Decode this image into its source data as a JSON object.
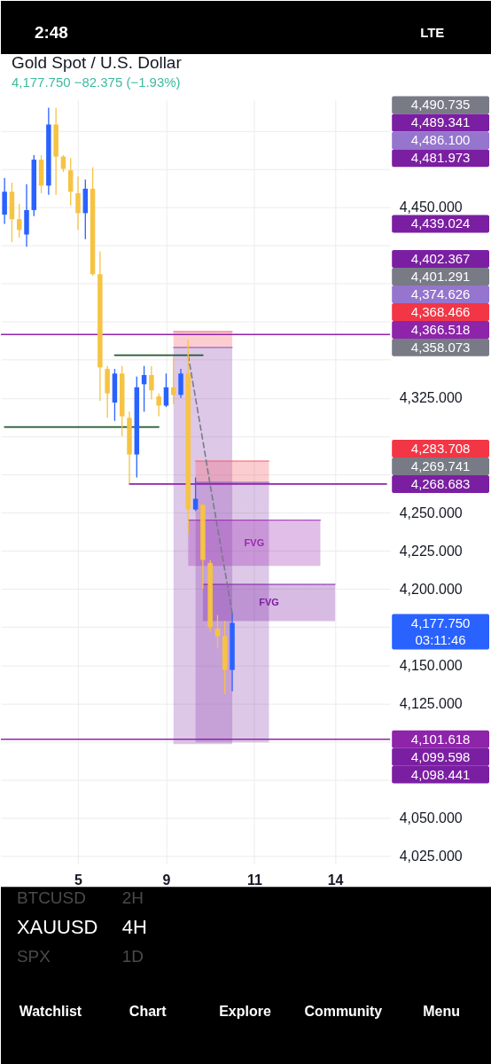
{
  "chart_data": {
    "type": "candlestick",
    "title": "Gold Spot / U.S. Dollar",
    "subtitle": "4,177.750 −82.375 (−1.93%)",
    "categories": [
      null,
      null,
      null,
      null,
      null,
      null,
      null,
      null,
      null,
      null,
      "5",
      null,
      null,
      null,
      null,
      null,
      null,
      null,
      null,
      null,
      null,
      null,
      "9",
      null,
      null,
      null,
      null,
      null,
      null,
      null,
      null,
      null,
      null,
      null,
      "11",
      null,
      null,
      null,
      null,
      null,
      null,
      null,
      null,
      null,
      null,
      "14",
      null,
      null,
      null,
      null,
      null,
      null,
      null
    ],
    "ohlc": [
      [
        4445,
        4469,
        4439,
        4460
      ],
      [
        4460,
        4466,
        4427,
        4442
      ],
      [
        4442,
        4452,
        4430,
        4435
      ],
      [
        4432,
        4465,
        4424,
        4448
      ],
      [
        4448,
        4484,
        4444,
        4481
      ],
      [
        4481,
        4484,
        4459,
        4464
      ],
      [
        4464,
        4515,
        4458,
        4504
      ],
      [
        4504,
        4515,
        4458,
        4483
      ],
      [
        4483,
        4484,
        4473,
        4475
      ],
      [
        4474,
        4482,
        4451,
        4460
      ],
      [
        4459,
        4470,
        4435,
        4446
      ],
      [
        4446,
        4468,
        4429,
        4462
      ],
      [
        4462,
        4476,
        4405,
        4406
      ],
      [
        4406,
        4421,
        4323,
        4345
      ],
      [
        4344,
        4346,
        4312,
        4328
      ],
      [
        4322,
        4344,
        4310,
        4341
      ],
      [
        4341,
        4346,
        4300,
        4313
      ],
      [
        4312,
        4316,
        4269,
        4288
      ],
      [
        4288,
        4339,
        4273,
        4332
      ],
      [
        4334,
        4346,
        4316,
        4340
      ],
      [
        4340,
        4346,
        4324,
        4330
      ],
      [
        4326,
        4328,
        4313,
        4320
      ],
      [
        4320,
        4341,
        4319,
        4332
      ],
      [
        4332,
        4352,
        4321,
        4327
      ],
      [
        4327,
        4344,
        4325,
        4341
      ],
      [
        4341,
        4363,
        4236,
        4252
      ],
      [
        4252,
        4273,
        4251,
        4259
      ],
      [
        4255,
        4256,
        4200,
        4219
      ],
      [
        4217,
        4219,
        4172,
        4175
      ],
      [
        4174,
        4183,
        4161,
        4169
      ],
      [
        4169,
        4179,
        4131,
        4147
      ],
      [
        4147,
        4184,
        4133,
        4177.75
      ],
      null,
      null,
      null,
      null,
      null,
      null,
      null,
      null,
      null,
      null,
      null,
      null,
      null,
      null,
      null,
      null,
      null,
      null,
      null,
      null,
      null
    ],
    "colors": [
      "#2962ff",
      "#f6c343",
      "#f6c343",
      "#2962ff",
      "#2962ff",
      "#f6c343",
      "#2962ff",
      "#f6c343",
      "#f6c343",
      "#f6c343",
      "#f6c343",
      "#2962ff",
      "#f6c343",
      "#f6c343",
      "#f6c343",
      "#2962ff",
      "#f6c343",
      "#f6c343",
      "#2962ff",
      "#2962ff",
      "#f6c343",
      "#f6c343",
      "#2962ff",
      "#f6c343",
      "#2962ff",
      "#f6c343",
      "#2962ff",
      "#f6c343",
      "#f6c343",
      "#f6c343",
      "#f6c343",
      "#2962ff",
      null,
      null,
      null,
      null,
      null,
      null,
      null,
      null,
      null,
      null,
      null,
      null,
      null,
      null,
      null,
      null,
      null,
      null,
      null,
      null,
      null
    ],
    "series": [
      {
        "type": "line",
        "color": "#f55862",
        "values": [
          null,
          null,
          null,
          null,
          null,
          null,
          null,
          null,
          null,
          null,
          null,
          null,
          null,
          null,
          null,
          null,
          null,
          null,
          null,
          null,
          null,
          null,
          null,
          4368.466,
          4368.466,
          4368.466,
          4368.466,
          4368.466,
          4368.466,
          4368.466,
          4368.466,
          4368.466,
          null,
          null,
          null,
          null,
          null,
          null,
          null,
          null,
          null,
          null,
          null,
          null,
          null,
          null,
          null,
          null,
          null,
          null,
          null,
          null,
          null
        ],
        "lower": [
          null,
          null,
          null,
          null,
          null,
          null,
          null,
          null,
          null,
          null,
          null,
          null,
          null,
          null,
          null,
          null,
          null,
          null,
          null,
          null,
          null,
          null,
          null,
          4358.073,
          4358.073,
          4358.073,
          4358.073,
          4358.073,
          4358.073,
          4358.073,
          4358.073,
          4358.073,
          null,
          null,
          null,
          null,
          null,
          null,
          null,
          null,
          null,
          null,
          null,
          null,
          null,
          null,
          null,
          null,
          null,
          null,
          null,
          null,
          null
        ],
        "upper": [
          null,
          null,
          null,
          null,
          null,
          null,
          null,
          null,
          null,
          null,
          null,
          null,
          null,
          null,
          null,
          null,
          null,
          null,
          null,
          null,
          null,
          null,
          null,
          4368.466,
          4368.466,
          4368.466,
          4368.466,
          4368.466,
          4368.466,
          4368.466,
          4368.466,
          4368.466,
          null,
          null,
          null,
          null,
          null,
          null,
          null,
          null,
          null,
          null,
          null,
          null,
          null,
          null,
          null,
          null,
          null,
          null,
          null,
          null,
          null
        ]
      },
      {
        "type": "line",
        "color": "#8e48b2",
        "values": [
          null,
          null,
          null,
          null,
          null,
          null,
          null,
          null,
          null,
          null,
          null,
          null,
          null,
          null,
          null,
          null,
          null,
          null,
          null,
          null,
          null,
          null,
          null,
          4358.073,
          4358.073,
          4358.073,
          4358.073,
          4358.073,
          4358.073,
          4358.073,
          4358.073,
          4358.073,
          null,
          null,
          null,
          null,
          null,
          null,
          null,
          null,
          null,
          null,
          null,
          null,
          null,
          null,
          null,
          null,
          null,
          null,
          null,
          null,
          null
        ],
        "lower": [
          null,
          null,
          null,
          null,
          null,
          null,
          null,
          null,
          null,
          null,
          null,
          null,
          null,
          null,
          null,
          null,
          null,
          null,
          null,
          null,
          null,
          null,
          null,
          4098.441,
          4098.441,
          4098.441,
          4098.441,
          4098.441,
          4098.441,
          4098.441,
          4098.441,
          4098.441,
          null,
          null,
          null,
          null,
          null,
          null,
          null,
          null,
          null,
          null,
          null,
          null,
          null,
          null,
          null,
          null,
          null,
          null,
          null,
          null,
          null
        ],
        "upper": [
          null,
          null,
          null,
          null,
          null,
          null,
          null,
          null,
          null,
          null,
          null,
          null,
          null,
          null,
          null,
          null,
          null,
          null,
          null,
          null,
          null,
          null,
          null,
          4358.073,
          4358.073,
          4358.073,
          4358.073,
          4358.073,
          4358.073,
          4358.073,
          4358.073,
          4358.073,
          null,
          null,
          null,
          null,
          null,
          null,
          null,
          null,
          null,
          null,
          null,
          null,
          null,
          null,
          null,
          null,
          null,
          null,
          null,
          null,
          null
        ]
      },
      {
        "type": "line",
        "color": "#f55862",
        "values": [
          null,
          null,
          null,
          null,
          null,
          null,
          null,
          null,
          null,
          null,
          null,
          null,
          null,
          null,
          null,
          null,
          null,
          null,
          null,
          null,
          null,
          null,
          null,
          null,
          null,
          null,
          4283.708,
          4283.708,
          4283.708,
          4283.708,
          4283.708,
          4283.708,
          4283.708,
          4283.708,
          4283.708,
          4283.708,
          4283.708,
          null,
          null,
          null,
          null,
          null,
          null,
          null,
          null,
          null,
          null,
          null,
          null,
          null,
          null,
          null,
          null
        ],
        "lower": [
          null,
          null,
          null,
          null,
          null,
          null,
          null,
          null,
          null,
          null,
          null,
          null,
          null,
          null,
          null,
          null,
          null,
          null,
          null,
          null,
          null,
          null,
          null,
          null,
          null,
          null,
          4269.741,
          4269.741,
          4269.741,
          4269.741,
          4269.741,
          4269.741,
          4269.741,
          4269.741,
          4269.741,
          4269.741,
          4269.741,
          null,
          null,
          null,
          null,
          null,
          null,
          null,
          null,
          null,
          null,
          null,
          null,
          null,
          null,
          null,
          null
        ],
        "upper": [
          null,
          null,
          null,
          null,
          null,
          null,
          null,
          null,
          null,
          null,
          null,
          null,
          null,
          null,
          null,
          null,
          null,
          null,
          null,
          null,
          null,
          null,
          null,
          null,
          null,
          null,
          4283.708,
          4283.708,
          4283.708,
          4283.708,
          4283.708,
          4283.708,
          4283.708,
          4283.708,
          4283.708,
          4283.708,
          4283.708,
          null,
          null,
          null,
          null,
          null,
          null,
          null,
          null,
          null,
          null,
          null,
          null,
          null,
          null,
          null,
          null
        ]
      },
      {
        "type": "line",
        "color": "#8e48b2",
        "values": [
          null,
          null,
          null,
          null,
          null,
          null,
          null,
          null,
          null,
          null,
          null,
          null,
          null,
          null,
          null,
          null,
          null,
          null,
          null,
          null,
          null,
          null,
          null,
          null,
          null,
          null,
          4269.741,
          4269.741,
          4269.741,
          4269.741,
          4269.741,
          4269.741,
          4269.741,
          4269.741,
          4269.741,
          4269.741,
          4269.741,
          null,
          null,
          null,
          null,
          null,
          null,
          null,
          null,
          null,
          null,
          null,
          null,
          null,
          null,
          null,
          null
        ],
        "lower": [
          null,
          null,
          null,
          null,
          null,
          null,
          null,
          null,
          null,
          null,
          null,
          null,
          null,
          null,
          null,
          null,
          null,
          null,
          null,
          null,
          null,
          null,
          null,
          null,
          null,
          null,
          4099.598,
          4099.598,
          4099.598,
          4099.598,
          4099.598,
          4099.598,
          4099.598,
          4099.598,
          4099.598,
          4099.598,
          4099.598,
          null,
          null,
          null,
          null,
          null,
          null,
          null,
          null,
          null,
          null,
          null,
          null,
          null,
          null,
          null,
          null
        ],
        "upper": [
          null,
          null,
          null,
          null,
          null,
          null,
          null,
          null,
          null,
          null,
          null,
          null,
          null,
          null,
          null,
          null,
          null,
          null,
          null,
          null,
          null,
          null,
          null,
          null,
          null,
          null,
          4269.741,
          4269.741,
          4269.741,
          4269.741,
          4269.741,
          4269.741,
          4269.741,
          4269.741,
          4269.741,
          4269.741,
          4269.741,
          null,
          null,
          null,
          null,
          null,
          null,
          null,
          null,
          null,
          null,
          null,
          null,
          null,
          null,
          null,
          null
        ]
      },
      {
        "type": "line",
        "name": "FVG",
        "color": "#9c27b0",
        "values": [
          null,
          null,
          null,
          null,
          null,
          null,
          null,
          null,
          null,
          null,
          null,
          null,
          null,
          null,
          null,
          null,
          null,
          null,
          null,
          null,
          null,
          null,
          null,
          null,
          null,
          4245,
          4245,
          4245,
          4245,
          4245,
          4245,
          4245,
          4245,
          4245,
          4245,
          4245,
          4245,
          4245,
          4245,
          4245,
          4245,
          4245,
          4245,
          4245,
          null,
          null,
          null,
          null,
          null,
          null,
          null,
          null,
          null
        ],
        "lower": [
          null,
          null,
          null,
          null,
          null,
          null,
          null,
          null,
          null,
          null,
          null,
          null,
          null,
          null,
          null,
          null,
          null,
          null,
          null,
          null,
          null,
          null,
          null,
          null,
          null,
          4215,
          4215,
          4215,
          4215,
          4215,
          4215,
          4215,
          4215,
          4215,
          4215,
          4215,
          4215,
          4215,
          4215,
          4215,
          4215,
          4215,
          4215,
          4215,
          null,
          null,
          null,
          null,
          null,
          null,
          null,
          null,
          null
        ],
        "upper": [
          null,
          null,
          null,
          null,
          null,
          null,
          null,
          null,
          null,
          null,
          null,
          null,
          null,
          null,
          null,
          null,
          null,
          null,
          null,
          null,
          null,
          null,
          null,
          null,
          null,
          4245,
          4245,
          4245,
          4245,
          4245,
          4245,
          4245,
          4245,
          4245,
          4245,
          4245,
          4245,
          4245,
          4245,
          4245,
          4245,
          4245,
          4245,
          4245,
          null,
          null,
          null,
          null,
          null,
          null,
          null,
          null,
          null
        ]
      },
      {
        "type": "line",
        "color": "#7b1fa2",
        "values": [
          null,
          null,
          null,
          null,
          null,
          null,
          null,
          null,
          null,
          null,
          null,
          null,
          null,
          null,
          null,
          null,
          null,
          null,
          null,
          null,
          null,
          null,
          null,
          null,
          null,
          null,
          null,
          4203,
          4203,
          4203,
          4203,
          4203,
          4203,
          4203,
          4203,
          4203,
          4203,
          4203,
          4203,
          4203,
          4203,
          4203,
          4203,
          4203,
          4203,
          4203,
          null,
          null,
          null,
          null,
          null,
          null,
          null
        ],
        "lower": [
          null,
          null,
          null,
          null,
          null,
          null,
          null,
          null,
          null,
          null,
          null,
          null,
          null,
          null,
          null,
          null,
          null,
          null,
          null,
          null,
          null,
          null,
          null,
          null,
          null,
          null,
          null,
          4179,
          4179,
          4179,
          4179,
          4179,
          4179,
          4179,
          4179,
          4179,
          4179,
          4179,
          4179,
          4179,
          4179,
          4179,
          4179,
          4179,
          4179,
          4179,
          null,
          null,
          null,
          null,
          null,
          null,
          null
        ],
        "upper": [
          null,
          null,
          null,
          null,
          null,
          null,
          null,
          null,
          null,
          null,
          null,
          null,
          null,
          null,
          null,
          null,
          null,
          null,
          null,
          null,
          null,
          null,
          null,
          null,
          null,
          null,
          null,
          4203,
          4203,
          4203,
          4203,
          4203,
          4203,
          4203,
          4203,
          4203,
          4203,
          4203,
          4203,
          4203,
          4203,
          4203,
          4203,
          4203,
          4203,
          4203,
          null,
          null,
          null,
          null,
          null,
          null,
          null
        ]
      },
      {
        "type": "line",
        "color": "#1e5631",
        "values": [
          null,
          null,
          null,
          null,
          null,
          null,
          null,
          null,
          null,
          null,
          null,
          null,
          null,
          null,
          null,
          4353,
          4353,
          4353,
          4353,
          4353,
          4353,
          4353,
          4353,
          4353,
          4353,
          4353,
          4353,
          4353,
          null,
          null,
          null,
          null,
          null,
          null,
          null,
          null,
          null,
          null,
          null,
          null,
          null,
          null,
          null,
          null,
          null,
          null,
          null,
          null,
          null,
          null,
          null,
          null,
          null
        ]
      },
      {
        "type": "line",
        "color": "#1e5631",
        "values": [
          4306,
          4306,
          4306,
          4306,
          4306,
          4306,
          4306,
          4306,
          4306,
          4306,
          4306,
          4306,
          4306,
          4306,
          4306,
          4306,
          4306,
          4306,
          4306,
          4306,
          4306,
          4306,
          null,
          null,
          null,
          null,
          null,
          null,
          null,
          null,
          null,
          null,
          null,
          null,
          null,
          null,
          null,
          null,
          null,
          null,
          null,
          null,
          null,
          null,
          null,
          null,
          null,
          null,
          null,
          null,
          null,
          null,
          null
        ]
      },
      {
        "type": "line",
        "color": "#8e24aa",
        "values": [
          null,
          null,
          null,
          null,
          null,
          null,
          null,
          null,
          null,
          null,
          null,
          null,
          null,
          null,
          null,
          null,
          null,
          4268.683,
          4268.683,
          4268.683,
          4268.683,
          4268.683,
          4268.683,
          4268.683,
          4268.683,
          4268.683,
          4268.683,
          4268.683,
          4268.683,
          4268.683,
          4268.683,
          4268.683,
          4268.683,
          4268.683,
          4268.683,
          4268.683,
          4268.683,
          4268.683,
          4268.683,
          4268.683,
          4268.683,
          4268.683,
          4268.683,
          4268.683,
          4268.683,
          4268.683,
          4268.683,
          4268.683,
          4268.683,
          4268.683,
          4268.683,
          4268.683,
          4268.683
        ]
      },
      {
        "type": "line",
        "color": "#787b86",
        "line_style": "dashed",
        "values": [
          null,
          null,
          null,
          null,
          null,
          null,
          null,
          null,
          null,
          null,
          null,
          null,
          null,
          null,
          null,
          null,
          null,
          null,
          null,
          null,
          null,
          null,
          null,
          null,
          null,
          4353,
          4325,
          4297,
          4268,
          4240,
          4212,
          4184,
          null,
          null,
          null,
          null,
          null,
          null,
          null,
          null,
          null,
          null,
          null,
          null,
          null,
          null,
          null,
          null,
          null,
          null,
          null,
          null,
          null
        ]
      }
    ],
    "ref_lines": [
      {
        "axis": "y",
        "value": 4366.518,
        "label": "4,366.518",
        "color": "#8e24aa"
      },
      {
        "axis": "y",
        "value": 4101.618,
        "label": "4,101.618",
        "color": "#8e24aa"
      }
    ],
    "ylim": [
      4020,
      4520
    ],
    "yticks": [
      {
        "value": 4025,
        "label": "4,025.000"
      },
      {
        "value": 4050,
        "label": "4,050.000"
      },
      {
        "value": 4075,
        "label": null
      },
      {
        "value": 4100,
        "label": null
      },
      {
        "value": 4125,
        "label": "4,125.000"
      },
      {
        "value": 4150,
        "label": "4,150.000"
      },
      {
        "value": 4175,
        "label": null
      },
      {
        "value": 4200,
        "label": "4,200.000"
      },
      {
        "value": 4225,
        "label": "4,225.000"
      },
      {
        "value": 4250,
        "label": "4,250.000"
      },
      {
        "value": 4275,
        "label": null
      },
      {
        "value": 4300,
        "label": null
      },
      {
        "value": 4325,
        "label": "4,325.000"
      },
      {
        "value": 4350,
        "label": null
      },
      {
        "value": 4375,
        "label": null
      },
      {
        "value": 4400,
        "label": null
      },
      {
        "value": 4425,
        "label": null
      },
      {
        "value": 4450,
        "label": "4,450.000"
      },
      {
        "value": 4475,
        "label": null
      },
      {
        "value": 4500,
        "label": null
      }
    ],
    "grid": true,
    "annotations": [
      "2:48",
      "LTE",
      "XAUUSD",
      "4H",
      "BTCUSD",
      "2H",
      "SPX",
      "1D",
      "Watchlist",
      "Chart",
      "Explore",
      "Community",
      "Menu",
      "4,490.735",
      "4,489.341",
      "4,486.100",
      "4,481.973",
      "4,439.024",
      "4,402.367",
      "4,401.291",
      "4,374.626",
      "4,368.466",
      "4,358.073",
      "4,283.708",
      "4,269.741",
      "4,268.683",
      "4,177.750\n03:11:46",
      "4,099.598",
      "4,098.441",
      "FVG"
    ]
  }
}
